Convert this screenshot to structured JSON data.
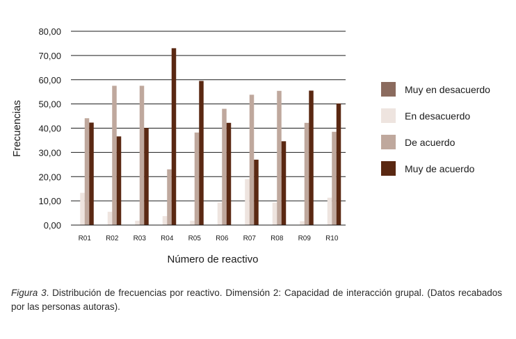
{
  "chart_data": {
    "type": "bar",
    "xlabel": "Número de reactivo",
    "ylabel": "Frecuencias",
    "ylim": [
      0,
      80
    ],
    "yticks": [
      "0,00",
      "10,00",
      "20,00",
      "30,00",
      "40,00",
      "50,00",
      "60,00",
      "70,00",
      "80,00"
    ],
    "grid": true,
    "legend_position": "right",
    "categories": [
      "R01",
      "R02",
      "R03",
      "R04",
      "R05",
      "R06",
      "R07",
      "R08",
      "R09",
      "R10"
    ],
    "series": [
      {
        "name": "Muy en desacuerdo",
        "color": "#8b6b5e",
        "values": [
          0,
          0,
          0,
          0,
          0,
          0,
          0,
          0,
          0,
          0
        ]
      },
      {
        "name": "En desacuerdo",
        "color": "#eee4df",
        "values": [
          13.3,
          5.5,
          1.8,
          3.7,
          1.8,
          9.3,
          19.0,
          9.3,
          1.6,
          11.3
        ]
      },
      {
        "name": "De acuerdo",
        "color": "#bfa89d",
        "values": [
          44.1,
          57.5,
          57.5,
          23.0,
          38.2,
          48.0,
          53.8,
          55.4,
          42.2,
          38.5
        ]
      },
      {
        "name": "Muy de acuerdo",
        "color": "#5a2812",
        "values": [
          42.3,
          36.6,
          40.1,
          73.0,
          59.5,
          42.2,
          27.0,
          34.6,
          55.5,
          50.2
        ]
      }
    ]
  },
  "caption": {
    "figure_label": "Figura 3",
    "text": ". Distribución de frecuencias por reactivo. Dimensión 2: Capacidad de interacción grupal. (Datos recabados por las personas autoras)."
  }
}
